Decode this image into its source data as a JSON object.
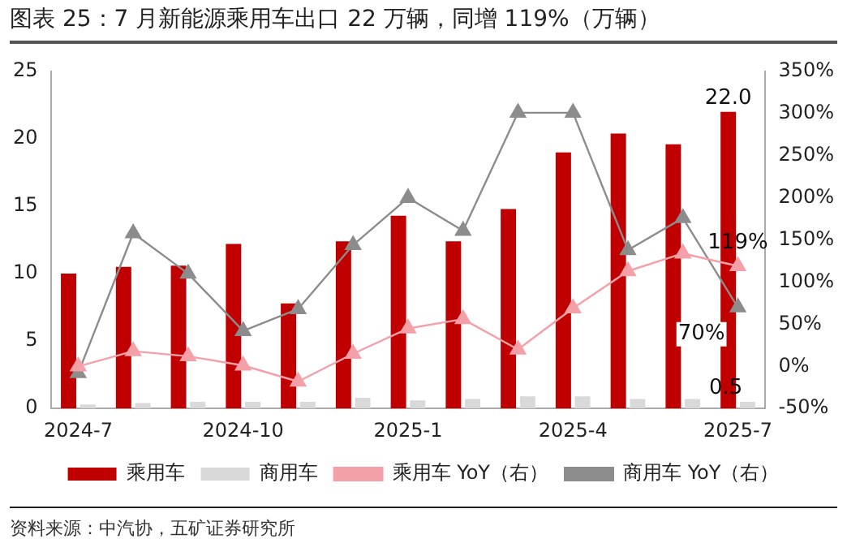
{
  "chart_data": {
    "type": "bar",
    "title": "图表 25：7 月新能源乘用车出口 22 万辆，同增 119%（万辆）",
    "categories": [
      "2024-7",
      null,
      null,
      "2024-10",
      null,
      null,
      "2025-1",
      null,
      null,
      "2025-4",
      null,
      null,
      "2025-7"
    ],
    "series": [
      {
        "name": "乘用车",
        "color": "#c00000",
        "values": [
          10.0,
          10.5,
          10.6,
          12.2,
          7.8,
          12.4,
          14.3,
          12.4,
          14.8,
          19.0,
          20.4,
          19.6,
          22.0
        ],
        "value_labels": [
          null,
          null,
          null,
          null,
          null,
          null,
          null,
          null,
          null,
          null,
          null,
          null,
          "22.0"
        ]
      },
      {
        "name": "商用车",
        "color": "#d9d9d9",
        "values": [
          0.3,
          0.4,
          0.5,
          0.5,
          0.5,
          0.8,
          0.6,
          0.7,
          0.9,
          0.9,
          0.7,
          0.7,
          0.5
        ],
        "value_labels": [
          null,
          null,
          null,
          null,
          null,
          null,
          null,
          null,
          null,
          null,
          null,
          null,
          "0.5"
        ]
      },
      {
        "name": "乘用车 YoY（右）",
        "type": "line",
        "axis": "y2",
        "color": "#f4a0a8",
        "values": [
          0,
          18,
          12,
          1,
          -18,
          15,
          45,
          56,
          20,
          69,
          113,
          134,
          119
        ],
        "value_labels": [
          null,
          null,
          null,
          null,
          null,
          null,
          null,
          null,
          null,
          null,
          null,
          null,
          "119%"
        ]
      },
      {
        "name": "商用车 YoY（右）",
        "type": "line",
        "axis": "y2",
        "color": "#8c8c8c",
        "values": [
          -8,
          158,
          110,
          42,
          68,
          144,
          200,
          161,
          301,
          301,
          138,
          176,
          70
        ],
        "value_labels": [
          null,
          null,
          null,
          null,
          null,
          null,
          null,
          null,
          null,
          null,
          null,
          null,
          "70%"
        ]
      }
    ],
    "ylim": [
      0,
      25
    ],
    "yticks": [
      0,
      5,
      10,
      15,
      20,
      25
    ],
    "y2lim": [
      -50,
      350
    ],
    "y2ticks": [
      {
        "value": -50,
        "label": "-50%"
      },
      {
        "value": 0,
        "label": "0%"
      },
      {
        "value": 50,
        "label": "50%"
      },
      {
        "value": 100,
        "label": "100%"
      },
      {
        "value": 150,
        "label": "150%"
      },
      {
        "value": 200,
        "label": "200%"
      },
      {
        "value": 250,
        "label": "250%"
      },
      {
        "value": 300,
        "label": "300%"
      },
      {
        "value": 350,
        "label": "350%"
      }
    ],
    "grid": false,
    "legend": "bottom",
    "marker": "triangle",
    "annotations": [
      "资料来源：中汽协，五矿证券研究所"
    ]
  }
}
